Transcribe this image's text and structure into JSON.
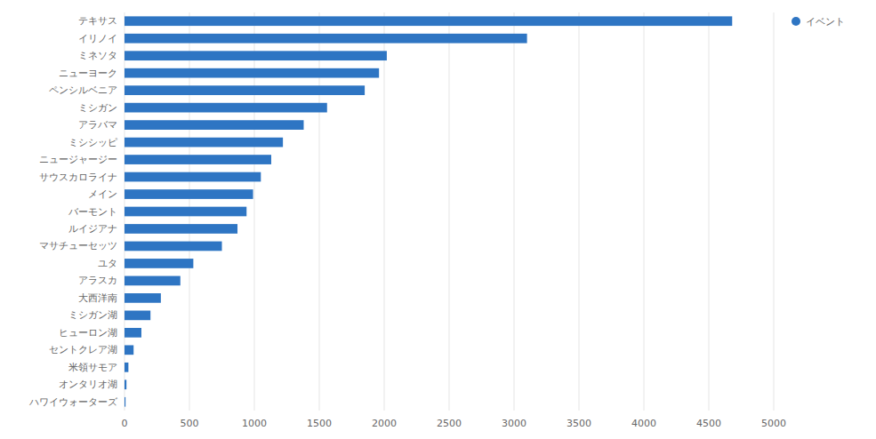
{
  "chart_data": {
    "type": "bar",
    "orientation": "horizontal",
    "categories": [
      "テキサス",
      "イリノイ",
      "ミネソタ",
      "ニューヨーク",
      "ペンシルベニア",
      "ミシガン",
      "アラバマ",
      "ミシシッピ",
      "ニュージャージー",
      "サウスカロライナ",
      "メイン",
      "バーモント",
      "ルイジアナ",
      "マサチューセッツ",
      "ユタ",
      "アラスカ",
      "大西洋南",
      "ミシガン湖",
      "ヒューロン湖",
      "セントクレア湖",
      "米領サモア",
      "オンタリオ湖",
      "ハワイウォーターズ"
    ],
    "series": [
      {
        "name": "イベント",
        "color": "#2e75c3",
        "values": [
          4680,
          3100,
          2020,
          1960,
          1850,
          1560,
          1380,
          1220,
          1130,
          1050,
          990,
          940,
          870,
          750,
          530,
          430,
          280,
          200,
          130,
          70,
          30,
          15,
          8
        ]
      }
    ],
    "xlim": [
      0,
      5000
    ],
    "xticks": [
      0,
      500,
      1000,
      1500,
      2000,
      2500,
      3000,
      3500,
      4000,
      4500,
      5000
    ],
    "grid": true,
    "legend": "upper right"
  }
}
